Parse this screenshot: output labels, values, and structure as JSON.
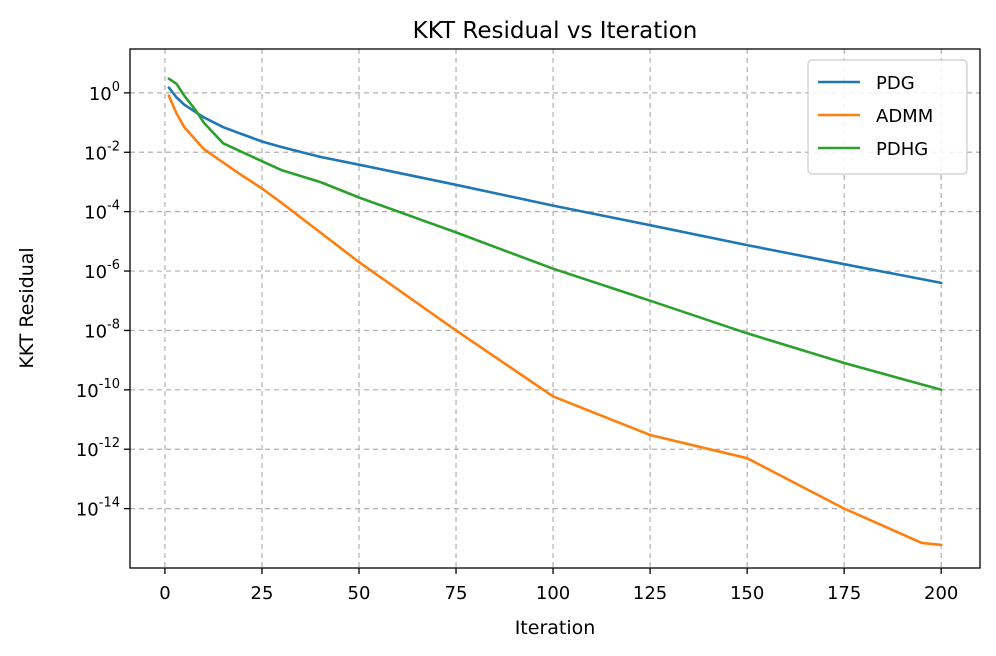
{
  "chart_data": {
    "type": "line",
    "title": "KKT Residual vs Iteration",
    "xlabel": "Iteration",
    "ylabel": "KKT Residual",
    "xlim": [
      -9,
      210
    ],
    "ylim": [
      1e-16,
      30
    ],
    "yscale": "log",
    "grid": true,
    "legend_position": "top-right",
    "x_ticks": [
      0,
      25,
      50,
      75,
      100,
      125,
      150,
      175,
      200
    ],
    "y_tick_exponents": [
      0,
      -2,
      -4,
      -6,
      -8,
      -10,
      -12,
      -14
    ],
    "series": [
      {
        "name": "PDG",
        "color": "#1f77b4",
        "x": [
          1,
          3,
          5,
          10,
          15,
          20,
          25,
          30,
          40,
          50,
          75,
          100,
          125,
          150,
          175,
          200
        ],
        "y": [
          1.5,
          0.7,
          0.4,
          0.15,
          0.07,
          0.04,
          0.023,
          0.015,
          0.007,
          0.0038,
          0.0008,
          0.00016,
          3.5e-05,
          7.5e-06,
          1.7e-06,
          4e-07
        ]
      },
      {
        "name": "ADMM",
        "color": "#ff7f0e",
        "x": [
          1,
          3,
          5,
          8,
          10,
          15,
          20,
          25,
          30,
          40,
          50,
          75,
          100,
          125,
          150,
          175,
          195,
          200
        ],
        "y": [
          0.8,
          0.2,
          0.07,
          0.025,
          0.013,
          0.0045,
          0.0016,
          0.0006,
          0.0002,
          2e-05,
          2e-06,
          1e-08,
          6e-11,
          3e-12,
          5e-13,
          1e-14,
          7e-16,
          6e-16
        ]
      },
      {
        "name": "PDHG",
        "color": "#2ca02c",
        "x": [
          1,
          3,
          5,
          8,
          10,
          15,
          20,
          25,
          30,
          40,
          50,
          75,
          100,
          125,
          150,
          175,
          200
        ],
        "y": [
          3,
          2,
          0.8,
          0.25,
          0.1,
          0.02,
          0.01,
          0.005,
          0.0025,
          0.001,
          0.0003,
          2e-05,
          1.2e-06,
          1e-07,
          8e-09,
          8e-10,
          1e-10
        ]
      }
    ]
  }
}
